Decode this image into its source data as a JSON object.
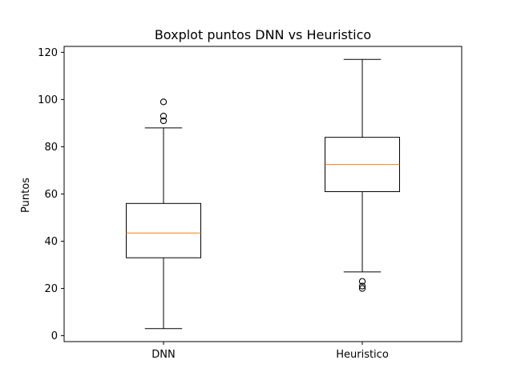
{
  "chart_data": {
    "type": "boxplot",
    "title": "Boxplot puntos DNN vs Heuristico",
    "xlabel": "",
    "ylabel": "Puntos",
    "ylim": [
      -2.5,
      122.5
    ],
    "yticks": [
      0,
      20,
      40,
      60,
      80,
      100,
      120
    ],
    "grid": false,
    "categories": [
      "DNN",
      "Heuristico"
    ],
    "boxes": [
      {
        "name": "DNN",
        "whisker_low": 3,
        "q1": 33,
        "median": 43.5,
        "q3": 56,
        "whisker_high": 88,
        "outliers": [
          91,
          93,
          99
        ]
      },
      {
        "name": "Heuristico",
        "whisker_low": 27,
        "q1": 61,
        "median": 72.5,
        "q3": 84,
        "whisker_high": 117,
        "outliers": [
          20,
          21,
          23
        ]
      }
    ],
    "colors": {
      "box": "#000000",
      "median": "#ff7f0e",
      "axes": "#000000"
    }
  }
}
